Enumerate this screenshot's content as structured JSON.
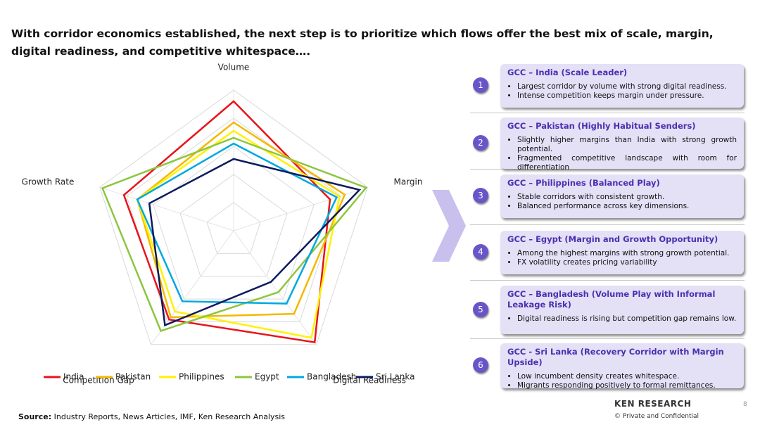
{
  "title": "With corridor economics established, the next step is to prioritize which flows offer the best mix of scale, margin, digital readiness, and competitive whitespace….",
  "chart_data": {
    "type": "radar",
    "axes": [
      "Volume",
      "Margin",
      "Digital Readiness",
      "Competition Gap",
      "Growth Rate"
    ],
    "rlim": [
      0,
      10
    ],
    "rticks": [
      2,
      4,
      6,
      8,
      10
    ],
    "grid": true,
    "series": [
      {
        "name": "India",
        "color": "#e8141c",
        "values": [
          9.2,
          7.2,
          9.8,
          7.8,
          8.2
        ]
      },
      {
        "name": "Pakistan",
        "color": "#f5b800",
        "values": [
          7.7,
          8.3,
          7.3,
          7.6,
          7.2
        ]
      },
      {
        "name": "Philippines",
        "color": "#fff200",
        "values": [
          7.1,
          7.9,
          9.4,
          7.1,
          7.2
        ]
      },
      {
        "name": "Egypt",
        "color": "#8dc63f",
        "values": [
          6.6,
          9.9,
          5.4,
          8.8,
          9.8
        ]
      },
      {
        "name": "Bangladesh",
        "color": "#00a8e0",
        "values": [
          6.2,
          7.7,
          6.4,
          6.2,
          7.2
        ]
      },
      {
        "name": "Sri Lanka",
        "color": "#0d1b5e",
        "values": [
          5.1,
          9.4,
          4.5,
          8.3,
          6.3
        ]
      }
    ]
  },
  "cards": [
    {
      "number": "1",
      "title": "GCC – India (Scale Leader)",
      "bullets": [
        "Largest corridor by volume with strong digital readiness.",
        "Intense competition keeps margin under pressure."
      ]
    },
    {
      "number": "2",
      "title": "GCC – Pakistan (Highly Habitual Senders)",
      "bullets": [
        "Slightly higher margins than India with strong growth potential.",
        "Fragmented competitive landscape with room for differentiation"
      ]
    },
    {
      "number": "3",
      "title": "GCC – Philippines (Balanced Play)",
      "bullets": [
        "Stable corridors with consistent growth.",
        "Balanced performance across key dimensions."
      ]
    },
    {
      "number": "4",
      "title": "GCC – Egypt (Margin and Growth Opportunity)",
      "bullets": [
        "Among the highest margins with strong growth potential.",
        "FX volatility creates pricing variability"
      ]
    },
    {
      "number": "5",
      "title": "GCC – Bangladesh (Volume Play with Informal Leakage Risk)",
      "bullets": [
        "Digital readiness is rising but competition gap remains low."
      ]
    },
    {
      "number": "6",
      "title": "GCC - Sri Lanka (Recovery Corridor with Margin Upside)",
      "bullets": [
        "Low incumbent density creates whitespace.",
        "Migrants responding positively to formal remittances."
      ]
    }
  ],
  "source_label": "Source:",
  "source_text": "Industry Reports, News Articles, IMF, Ken Research Analysis",
  "brand": "KEN RESEARCH",
  "confidential": "©  Private and Confidential",
  "page_number": "8"
}
